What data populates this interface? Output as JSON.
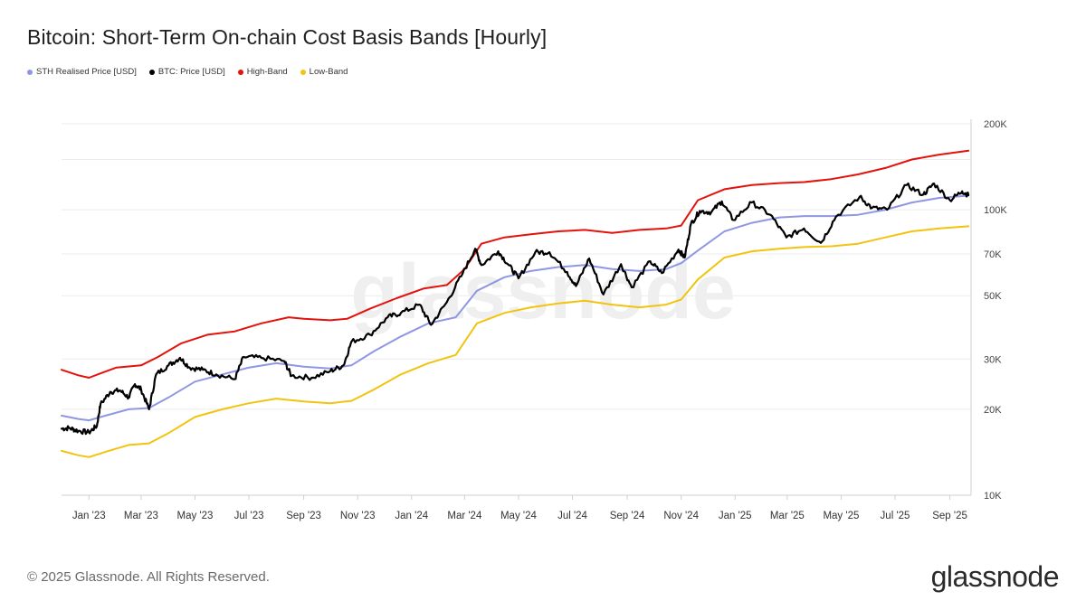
{
  "title": "Bitcoin: Short-Term On-chain Cost Basis Bands [Hourly]",
  "footer": "© 2025 Glassnode. All Rights Reserved.",
  "brand": "glassnode",
  "watermark": "glassnode",
  "legend": [
    {
      "label": "STH Realised Price [USD]",
      "color": "#8f97e3"
    },
    {
      "label": "BTC: Price [USD]",
      "color": "#000000"
    },
    {
      "label": "High-Band",
      "color": "#e3120b"
    },
    {
      "label": "Low-Band",
      "color": "#f2c30f"
    }
  ],
  "chart_data": {
    "type": "line",
    "title": "Bitcoin: Short-Term On-chain Cost Basis Bands [Hourly]",
    "xlabel": "",
    "ylabel": "",
    "y_scale": "log",
    "ylim": [
      10000,
      200000
    ],
    "xlim": [
      "2022-12-01",
      "2025-09-25"
    ],
    "grid": true,
    "legend_position": "top-left",
    "y_ticks": [
      {
        "value": 10000,
        "label": "10K"
      },
      {
        "value": 20000,
        "label": "20K"
      },
      {
        "value": 30000,
        "label": "30K"
      },
      {
        "value": 50000,
        "label": "50K"
      },
      {
        "value": 70000,
        "label": "70K"
      },
      {
        "value": 100000,
        "label": "100K"
      },
      {
        "value": 200000,
        "label": "200K"
      }
    ],
    "x_ticks": [
      {
        "date": "2023-01-01",
        "label": "Jan '23"
      },
      {
        "date": "2023-03-01",
        "label": "Mar '23"
      },
      {
        "date": "2023-05-01",
        "label": "May '23"
      },
      {
        "date": "2023-07-01",
        "label": "Jul '23"
      },
      {
        "date": "2023-09-01",
        "label": "Sep '23"
      },
      {
        "date": "2023-11-01",
        "label": "Nov '23"
      },
      {
        "date": "2024-01-01",
        "label": "Jan '24"
      },
      {
        "date": "2024-03-01",
        "label": "Mar '24"
      },
      {
        "date": "2024-05-01",
        "label": "May '24"
      },
      {
        "date": "2024-07-01",
        "label": "Jul '24"
      },
      {
        "date": "2024-09-01",
        "label": "Sep '24"
      },
      {
        "date": "2024-11-01",
        "label": "Nov '24"
      },
      {
        "date": "2025-01-01",
        "label": "Jan '25"
      },
      {
        "date": "2025-03-01",
        "label": "Mar '25"
      },
      {
        "date": "2025-05-01",
        "label": "May '25"
      },
      {
        "date": "2025-07-01",
        "label": "Jul '25"
      },
      {
        "date": "2025-09-01",
        "label": "Sep '25"
      }
    ],
    "series": [
      {
        "name": "High-Band",
        "color": "#e3120b",
        "points": [
          [
            "2022-12-01",
            27500
          ],
          [
            "2022-12-20",
            26300
          ],
          [
            "2023-01-01",
            25800
          ],
          [
            "2023-01-15",
            26800
          ],
          [
            "2023-02-01",
            28000
          ],
          [
            "2023-03-01",
            28500
          ],
          [
            "2023-03-20",
            30500
          ],
          [
            "2023-04-15",
            34000
          ],
          [
            "2023-05-15",
            36500
          ],
          [
            "2023-06-15",
            37500
          ],
          [
            "2023-07-15",
            40000
          ],
          [
            "2023-08-15",
            42000
          ],
          [
            "2023-09-01",
            41500
          ],
          [
            "2023-10-01",
            41000
          ],
          [
            "2023-10-20",
            41500
          ],
          [
            "2023-11-15",
            45000
          ],
          [
            "2023-12-15",
            49000
          ],
          [
            "2024-01-15",
            53000
          ],
          [
            "2024-02-10",
            54500
          ],
          [
            "2024-03-01",
            62000
          ],
          [
            "2024-03-20",
            76000
          ],
          [
            "2024-04-15",
            80000
          ],
          [
            "2024-05-15",
            82000
          ],
          [
            "2024-06-15",
            84000
          ],
          [
            "2024-07-15",
            85000
          ],
          [
            "2024-08-15",
            83000
          ],
          [
            "2024-09-15",
            85000
          ],
          [
            "2024-10-15",
            86000
          ],
          [
            "2024-11-01",
            88000
          ],
          [
            "2024-11-20",
            108000
          ],
          [
            "2024-12-20",
            118000
          ],
          [
            "2025-01-20",
            122000
          ],
          [
            "2025-02-20",
            124000
          ],
          [
            "2025-03-20",
            125000
          ],
          [
            "2025-04-20",
            128000
          ],
          [
            "2025-05-20",
            133000
          ],
          [
            "2025-06-20",
            140000
          ],
          [
            "2025-07-20",
            150000
          ],
          [
            "2025-08-20",
            156000
          ],
          [
            "2025-09-22",
            161000
          ]
        ]
      },
      {
        "name": "STH Realised Price [USD]",
        "color": "#8f97e3",
        "points": [
          [
            "2022-12-01",
            19000
          ],
          [
            "2022-12-20",
            18500
          ],
          [
            "2023-01-01",
            18300
          ],
          [
            "2023-01-20",
            19000
          ],
          [
            "2023-02-15",
            20000
          ],
          [
            "2023-03-10",
            20200
          ],
          [
            "2023-04-01",
            22000
          ],
          [
            "2023-05-01",
            25000
          ],
          [
            "2023-06-01",
            26500
          ],
          [
            "2023-07-01",
            28000
          ],
          [
            "2023-08-01",
            29000
          ],
          [
            "2023-09-01",
            28200
          ],
          [
            "2023-10-01",
            27800
          ],
          [
            "2023-10-25",
            28500
          ],
          [
            "2023-11-20",
            32000
          ],
          [
            "2023-12-20",
            36000
          ],
          [
            "2024-01-20",
            40000
          ],
          [
            "2024-02-20",
            42000
          ],
          [
            "2024-03-15",
            52000
          ],
          [
            "2024-04-15",
            58000
          ],
          [
            "2024-05-15",
            61000
          ],
          [
            "2024-06-15",
            63000
          ],
          [
            "2024-07-15",
            64000
          ],
          [
            "2024-08-15",
            62000
          ],
          [
            "2024-09-15",
            61000
          ],
          [
            "2024-10-15",
            62000
          ],
          [
            "2024-11-01",
            65000
          ],
          [
            "2024-11-20",
            72000
          ],
          [
            "2024-12-20",
            84000
          ],
          [
            "2025-01-20",
            90000
          ],
          [
            "2025-02-20",
            94000
          ],
          [
            "2025-03-20",
            95000
          ],
          [
            "2025-04-20",
            95000
          ],
          [
            "2025-05-20",
            96000
          ],
          [
            "2025-06-20",
            100000
          ],
          [
            "2025-07-20",
            106000
          ],
          [
            "2025-08-20",
            110000
          ],
          [
            "2025-09-22",
            112000
          ]
        ]
      },
      {
        "name": "Low-Band",
        "color": "#f2c30f",
        "points": [
          [
            "2022-12-01",
            14300
          ],
          [
            "2022-12-20",
            13800
          ],
          [
            "2023-01-01",
            13600
          ],
          [
            "2023-01-20",
            14200
          ],
          [
            "2023-02-15",
            15000
          ],
          [
            "2023-03-10",
            15200
          ],
          [
            "2023-04-01",
            16500
          ],
          [
            "2023-05-01",
            18800
          ],
          [
            "2023-06-01",
            20000
          ],
          [
            "2023-07-01",
            21000
          ],
          [
            "2023-08-01",
            21800
          ],
          [
            "2023-09-01",
            21300
          ],
          [
            "2023-10-01",
            21000
          ],
          [
            "2023-10-25",
            21400
          ],
          [
            "2023-11-20",
            23500
          ],
          [
            "2023-12-20",
            26500
          ],
          [
            "2024-01-20",
            29000
          ],
          [
            "2024-02-20",
            31000
          ],
          [
            "2024-03-15",
            40000
          ],
          [
            "2024-04-15",
            43500
          ],
          [
            "2024-05-15",
            45500
          ],
          [
            "2024-06-15",
            47000
          ],
          [
            "2024-07-15",
            48000
          ],
          [
            "2024-08-15",
            46500
          ],
          [
            "2024-09-15",
            45500
          ],
          [
            "2024-10-15",
            46500
          ],
          [
            "2024-11-01",
            48500
          ],
          [
            "2024-11-20",
            57000
          ],
          [
            "2024-12-20",
            68000
          ],
          [
            "2025-01-20",
            71500
          ],
          [
            "2025-02-20",
            73000
          ],
          [
            "2025-03-20",
            74000
          ],
          [
            "2025-04-20",
            74500
          ],
          [
            "2025-05-20",
            76000
          ],
          [
            "2025-06-20",
            80000
          ],
          [
            "2025-07-20",
            84000
          ],
          [
            "2025-08-20",
            86000
          ],
          [
            "2025-09-22",
            87500
          ]
        ]
      },
      {
        "name": "BTC: Price [USD]",
        "color": "#000000",
        "points": [
          [
            "2022-12-01",
            17100
          ],
          [
            "2022-12-10",
            17200
          ],
          [
            "2022-12-20",
            16800
          ],
          [
            "2023-01-01",
            16600
          ],
          [
            "2023-01-10",
            17500
          ],
          [
            "2023-01-14",
            20800
          ],
          [
            "2023-01-25",
            23000
          ],
          [
            "2023-02-05",
            23300
          ],
          [
            "2023-02-15",
            22000
          ],
          [
            "2023-02-22",
            24500
          ],
          [
            "2023-03-01",
            23500
          ],
          [
            "2023-03-10",
            20000
          ],
          [
            "2023-03-18",
            26500
          ],
          [
            "2023-04-01",
            28500
          ],
          [
            "2023-04-14",
            30300
          ],
          [
            "2023-04-25",
            28000
          ],
          [
            "2023-05-10",
            27500
          ],
          [
            "2023-05-25",
            26500
          ],
          [
            "2023-06-15",
            25500
          ],
          [
            "2023-06-25",
            30500
          ],
          [
            "2023-07-15",
            30300
          ],
          [
            "2023-08-10",
            29500
          ],
          [
            "2023-08-18",
            26200
          ],
          [
            "2023-09-10",
            25800
          ],
          [
            "2023-10-01",
            27200
          ],
          [
            "2023-10-16",
            28500
          ],
          [
            "2023-10-25",
            34500
          ],
          [
            "2023-11-15",
            36500
          ],
          [
            "2023-12-05",
            42000
          ],
          [
            "2023-12-20",
            43500
          ],
          [
            "2024-01-10",
            46500
          ],
          [
            "2024-01-23",
            39500
          ],
          [
            "2024-02-10",
            47500
          ],
          [
            "2024-02-28",
            60000
          ],
          [
            "2024-03-13",
            73000
          ],
          [
            "2024-03-20",
            64000
          ],
          [
            "2024-04-08",
            71500
          ],
          [
            "2024-04-20",
            64000
          ],
          [
            "2024-05-01",
            57500
          ],
          [
            "2024-05-20",
            71000
          ],
          [
            "2024-06-05",
            71000
          ],
          [
            "2024-06-25",
            60500
          ],
          [
            "2024-07-05",
            54000
          ],
          [
            "2024-07-20",
            67500
          ],
          [
            "2024-08-05",
            50500
          ],
          [
            "2024-08-25",
            64500
          ],
          [
            "2024-09-06",
            53500
          ],
          [
            "2024-09-27",
            66000
          ],
          [
            "2024-10-10",
            60000
          ],
          [
            "2024-10-29",
            72500
          ],
          [
            "2024-11-05",
            68000
          ],
          [
            "2024-11-12",
            89000
          ],
          [
            "2024-11-22",
            99000
          ],
          [
            "2024-12-05",
            98000
          ],
          [
            "2024-12-17",
            107000
          ],
          [
            "2024-12-30",
            92000
          ],
          [
            "2025-01-20",
            106000
          ],
          [
            "2025-02-10",
            96000
          ],
          [
            "2025-02-28",
            80000
          ],
          [
            "2025-03-20",
            86000
          ],
          [
            "2025-04-08",
            76500
          ],
          [
            "2025-04-25",
            94500
          ],
          [
            "2025-05-22",
            111000
          ],
          [
            "2025-06-05",
            101500
          ],
          [
            "2025-06-22",
            100000
          ],
          [
            "2025-07-14",
            122000
          ],
          [
            "2025-08-02",
            113000
          ],
          [
            "2025-08-14",
            123500
          ],
          [
            "2025-09-01",
            108000
          ],
          [
            "2025-09-15",
            116000
          ],
          [
            "2025-09-22",
            112500
          ]
        ]
      }
    ]
  }
}
